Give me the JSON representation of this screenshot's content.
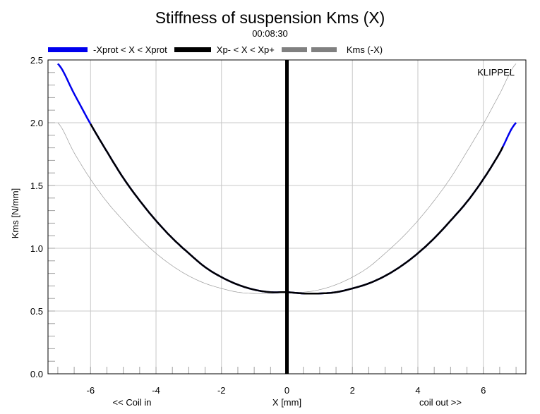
{
  "chart_data": {
    "type": "line",
    "title": "Stiffness of suspension Kms (X)",
    "subtitle": "00:08:30",
    "xlabel": "X [mm]",
    "ylabel": "Kms [N/mm]",
    "x_left_note": "<< Coil in",
    "x_right_note": "coil out >>",
    "watermark": "KLIPPEL",
    "xlim": [
      -7.3,
      7.3
    ],
    "ylim": [
      0,
      2.5
    ],
    "x_ticks": [
      -6,
      -4,
      -2,
      0,
      2,
      4,
      6
    ],
    "y_ticks": [
      0.0,
      0.5,
      1.0,
      1.5,
      2.0,
      2.5
    ],
    "x_tick_labels": [
      "-6",
      "-4",
      "-2",
      "0",
      "2",
      "4",
      "6"
    ],
    "y_tick_labels": [
      "0.0",
      "0.5",
      "1.0",
      "1.5",
      "2.0",
      "2.5"
    ],
    "grid": true,
    "legend_position": "top",
    "legend": [
      {
        "label": "-Xprot < X < Xprot",
        "color": "#0000ee"
      },
      {
        "label": "Xp- < X < Xp+",
        "color": "#000000"
      },
      {
        "label": "Kms (-X)",
        "color": "#808080"
      }
    ],
    "xp_range": [
      -6.0,
      6.6
    ],
    "marker_x": 0,
    "series": [
      {
        "name": "Kms (X)",
        "x": [
          -7,
          -6.5,
          -6,
          -5.5,
          -5,
          -4.5,
          -4,
          -3.5,
          -3,
          -2.5,
          -2,
          -1.5,
          -1,
          -0.5,
          0,
          0.5,
          1,
          1.5,
          2,
          2.5,
          3,
          3.5,
          4,
          4.5,
          5,
          5.5,
          6,
          6.5,
          7
        ],
        "values": [
          2.47,
          2.23,
          1.99,
          1.77,
          1.56,
          1.38,
          1.22,
          1.08,
          0.96,
          0.85,
          0.77,
          0.71,
          0.67,
          0.65,
          0.65,
          0.64,
          0.64,
          0.65,
          0.68,
          0.72,
          0.78,
          0.86,
          0.96,
          1.08,
          1.22,
          1.37,
          1.55,
          1.76,
          2.0
        ]
      },
      {
        "name": "Kms (-X)",
        "x": [
          -7,
          -6.5,
          -6,
          -5.5,
          -5,
          -4.5,
          -4,
          -3.5,
          -3,
          -2.5,
          -2,
          -1.5,
          -1,
          -0.5,
          0,
          0.5,
          1,
          1.5,
          2,
          2.5,
          3,
          3.5,
          4,
          4.5,
          5,
          5.5,
          6,
          6.5,
          7
        ],
        "values": [
          2.0,
          1.76,
          1.55,
          1.37,
          1.22,
          1.08,
          0.96,
          0.86,
          0.78,
          0.72,
          0.68,
          0.65,
          0.64,
          0.64,
          0.65,
          0.65,
          0.67,
          0.71,
          0.77,
          0.85,
          0.96,
          1.08,
          1.22,
          1.38,
          1.56,
          1.77,
          1.99,
          2.23,
          2.47
        ]
      }
    ]
  }
}
